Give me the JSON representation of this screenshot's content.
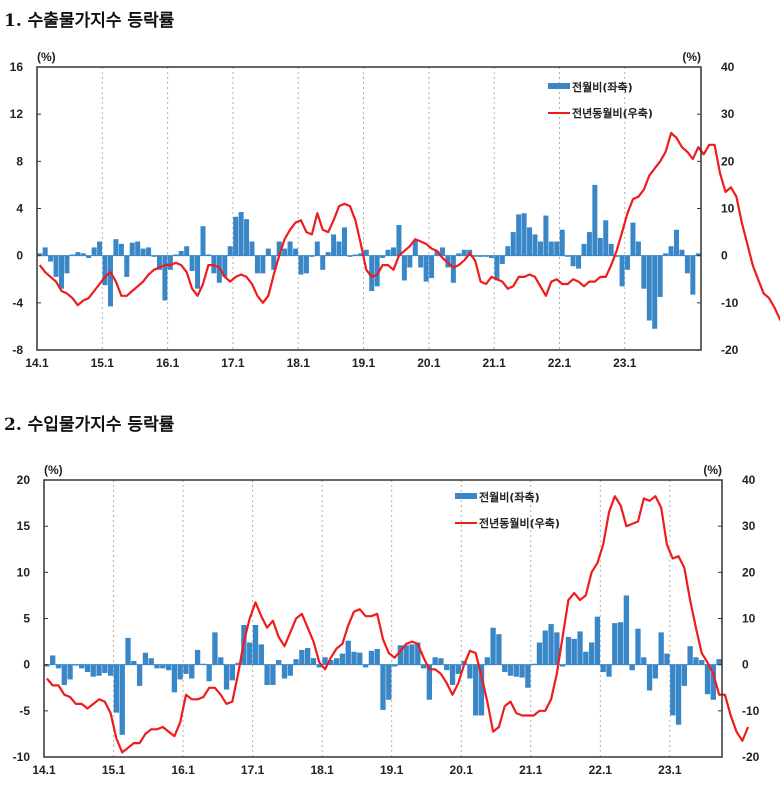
{
  "titles": [
    "1. 수출물가지수 등락률",
    "2. 수입물가지수 등락률"
  ],
  "colors": {
    "bar": "#3a87c8",
    "line": "#ee1c1c",
    "grid": "#b0b0b0"
  },
  "chart_data": [
    {
      "type": "bar+line",
      "title": "1. 수출물가지수 등락률",
      "left_unit": "(%)",
      "right_unit": "(%)",
      "legend": [
        "전월비(좌축)",
        "전년동월비(우축)"
      ],
      "legend_position": "top-right",
      "x_tick_labels": [
        "14.1",
        "15.1",
        "16.1",
        "17.1",
        "18.1",
        "19.1",
        "20.1",
        "21.1",
        "22.1",
        "23.1"
      ],
      "left_ylim": [
        -8,
        16
      ],
      "left_ticks": [
        -8,
        -4,
        0,
        4,
        8,
        12,
        16
      ],
      "right_ylim": [
        -20,
        40
      ],
      "right_ticks": [
        -20,
        -10,
        0,
        10,
        20,
        30,
        40
      ],
      "start": "14.1",
      "series": [
        {
          "name": "전월비(좌축)",
          "type": "bar",
          "axis": "left",
          "values": [
            0.2,
            0.7,
            -0.5,
            -1.8,
            -2.8,
            -1.5,
            0.1,
            0.3,
            0.2,
            -0.2,
            0.7,
            1.2,
            -2.5,
            -4.3,
            1.4,
            1.0,
            -1.8,
            1.1,
            1.2,
            0.6,
            0.7,
            -0.1,
            -1.2,
            -3.8,
            -1.2,
            0.1,
            0.4,
            0.8,
            -1.3,
            -2.8,
            2.5,
            0.1,
            -1.5,
            -2.3,
            -1.8,
            0.8,
            3.3,
            3.7,
            3.1,
            1.2,
            -1.5,
            -1.5,
            0.6,
            -1.2,
            1.2,
            0.6,
            1.2,
            0.6,
            -1.6,
            -1.5,
            -0.1,
            1.2,
            -1.2,
            0.3,
            1.8,
            1.2,
            2.4,
            -0.1,
            0.1,
            0.2,
            0.5,
            -3.0,
            -2.6,
            -0.2,
            0.5,
            0.7,
            2.6,
            -2.1,
            -1.0,
            1.3,
            -1.0,
            -2.2,
            -1.9,
            0.4,
            0.7,
            -1.0,
            -2.3,
            0.2,
            0.5,
            0.5,
            -0.1,
            -0.1,
            -0.1,
            -0.2,
            -2.1,
            -0.7,
            0.8,
            2.0,
            3.5,
            3.6,
            2.4,
            1.8,
            1.2,
            3.4,
            1.2,
            1.2,
            2.2,
            -0.1,
            -0.9,
            -1.1,
            1.0,
            2.0,
            6.0,
            1.5,
            3.0,
            1.0,
            -0.1,
            -2.6,
            -1.2,
            2.8,
            1.2,
            -2.8,
            -5.5,
            -6.2,
            -3.5,
            0.2,
            0.8,
            2.2,
            0.5,
            -1.5,
            -3.3,
            0.2
          ]
        },
        {
          "name": "전년동월비(우축)",
          "type": "line",
          "axis": "right",
          "values": [
            -2.0,
            -3.5,
            -4.5,
            -5.5,
            -7.5,
            -8.0,
            -9.0,
            -10.5,
            -9.5,
            -9.0,
            -7.5,
            -6.0,
            -4.5,
            -3.5,
            -5.5,
            -8.5,
            -8.5,
            -7.5,
            -6.5,
            -5.5,
            -4.0,
            -3.0,
            -2.5,
            -2.0,
            -2.0,
            -1.5,
            -2.0,
            -3.5,
            -7.0,
            -8.5,
            -6.0,
            -2.0,
            -2.0,
            -2.5,
            -4.5,
            -5.5,
            -4.5,
            -4.0,
            -4.5,
            -6.0,
            -8.5,
            -10.0,
            -8.5,
            -4.0,
            0.0,
            3.5,
            5.5,
            7.0,
            7.5,
            5.0,
            4.5,
            9.0,
            5.5,
            5.0,
            7.5,
            10.5,
            11.0,
            10.5,
            7.5,
            2.5,
            -3.0,
            -4.5,
            -4.0,
            -2.0,
            -2.0,
            -3.0,
            0.0,
            1.0,
            2.0,
            3.5,
            3.0,
            2.5,
            1.5,
            1.0,
            -0.5,
            -1.5,
            -2.5,
            -2.0,
            -1.0,
            0.5,
            -1.0,
            -5.5,
            -6.0,
            -4.5,
            -5.0,
            -5.5,
            -7.0,
            -6.5,
            -4.5,
            -4.5,
            -4.0,
            -4.5,
            -6.5,
            -8.5,
            -5.5,
            -5.0,
            -6.0,
            -6.0,
            -5.0,
            -5.5,
            -6.5,
            -5.5,
            -5.5,
            -4.5,
            -4.5,
            -2.0,
            1.0,
            5.0,
            9.0,
            12.0,
            12.5,
            14.0,
            17.0,
            18.5,
            20.0,
            22.0,
            26.0,
            25.0,
            23.0,
            22.0,
            20.5,
            23.0,
            21.5,
            23.5,
            23.5,
            17.5,
            13.5,
            14.5,
            12.5,
            7.0,
            2.5,
            -2.0,
            -5.0,
            -8.0,
            -9.0,
            -11.0,
            -13.5,
            -15.5,
            -13.0
          ]
        }
      ]
    },
    {
      "type": "bar+line",
      "title": "2. 수입물가지수 등락률",
      "left_unit": "(%)",
      "right_unit": "(%)",
      "legend": [
        "전월비(좌축)",
        "전년동월비(우축)"
      ],
      "legend_position": "top-right",
      "x_tick_labels": [
        "14.1",
        "15.1",
        "16.1",
        "17.1",
        "18.1",
        "19.1",
        "20.1",
        "21.1",
        "22.1",
        "23.1"
      ],
      "left_ylim": [
        -10,
        20
      ],
      "left_ticks": [
        -10,
        -5,
        0,
        5,
        10,
        15,
        20
      ],
      "right_ylim": [
        -20,
        40
      ],
      "right_ticks": [
        -20,
        -10,
        0,
        10,
        20,
        30,
        40
      ],
      "start": "14.1",
      "series": [
        {
          "name": "전월비(좌축)",
          "type": "bar",
          "axis": "left",
          "values": [
            -0.2,
            1.0,
            -0.4,
            -2.2,
            -1.6,
            -0.1,
            -0.4,
            -0.8,
            -1.3,
            -1.2,
            -0.9,
            -1.2,
            -5.2,
            -7.6,
            2.9,
            0.4,
            -2.3,
            1.3,
            0.7,
            -0.4,
            -0.4,
            -0.6,
            -3.0,
            -1.6,
            -1.0,
            -1.5,
            1.6,
            0.1,
            -1.8,
            3.5,
            0.8,
            -2.7,
            -1.7,
            0.2,
            4.3,
            2.4,
            4.3,
            2.2,
            -2.2,
            -2.2,
            0.5,
            -1.5,
            -1.2,
            0.6,
            1.6,
            1.8,
            0.7,
            -0.3,
            0.8,
            0.5,
            0.7,
            1.2,
            2.6,
            1.4,
            1.3,
            -0.3,
            1.5,
            1.7,
            -4.9,
            -3.8,
            -0.2,
            2.1,
            2.1,
            2.2,
            2.4,
            -0.4,
            -3.8,
            0.8,
            0.7,
            -0.6,
            -2.2,
            -1.0,
            0.4,
            -1.5,
            -5.5,
            -5.5,
            0.8,
            4.0,
            3.3,
            -0.8,
            -1.2,
            -1.3,
            -1.4,
            -2.5,
            0.1,
            2.4,
            3.7,
            4.4,
            3.5,
            -0.2,
            3.0,
            2.8,
            3.6,
            1.4,
            2.4,
            5.2,
            -0.8,
            -1.3,
            4.5,
            4.6,
            7.5,
            -0.6,
            3.9,
            0.8,
            -2.8,
            -1.5,
            3.5,
            1.2,
            -5.5,
            -6.5,
            -2.3,
            2.0,
            0.8,
            0.5,
            -3.2,
            -3.8,
            0.6
          ]
        },
        {
          "name": "전년동월비(우축)",
          "type": "line",
          "axis": "right",
          "values": [
            -3.0,
            -4.5,
            -4.5,
            -6.5,
            -7.0,
            -8.5,
            -8.5,
            -9.5,
            -8.5,
            -7.5,
            -8.0,
            -10.5,
            -16.0,
            -19.0,
            -18.0,
            -17.0,
            -17.0,
            -15.0,
            -14.0,
            -14.0,
            -13.5,
            -14.5,
            -15.5,
            -12.5,
            -6.5,
            -7.5,
            -7.5,
            -7.0,
            -5.0,
            -5.0,
            -6.5,
            -8.5,
            -8.0,
            -2.0,
            5.0,
            10.0,
            13.5,
            10.5,
            8.0,
            9.5,
            6.0,
            4.0,
            7.0,
            10.0,
            11.0,
            8.0,
            5.0,
            0.5,
            -1.0,
            1.5,
            3.5,
            4.5,
            8.5,
            11.5,
            12.0,
            10.5,
            10.5,
            11.0,
            5.5,
            2.5,
            1.5,
            3.0,
            4.5,
            5.0,
            4.5,
            1.5,
            -1.0,
            -1.0,
            -2.0,
            -4.0,
            -6.5,
            -4.0,
            0.0,
            3.0,
            2.5,
            -2.5,
            -8.0,
            -14.5,
            -13.5,
            -9.0,
            -8.0,
            -10.5,
            -11.0,
            -11.0,
            -11.0,
            -10.0,
            -10.0,
            -7.5,
            -2.0,
            6.0,
            14.0,
            15.5,
            14.0,
            15.0,
            20.0,
            22.0,
            26.0,
            33.0,
            36.5,
            34.5,
            30.0,
            30.5,
            31.0,
            36.0,
            35.5,
            36.5,
            34.0,
            26.0,
            23.0,
            23.5,
            21.0,
            14.0,
            8.0,
            2.5,
            0.5,
            -2.0,
            -6.5,
            -6.5,
            -11.0,
            -14.5,
            -16.5,
            -13.5
          ]
        }
      ]
    }
  ]
}
